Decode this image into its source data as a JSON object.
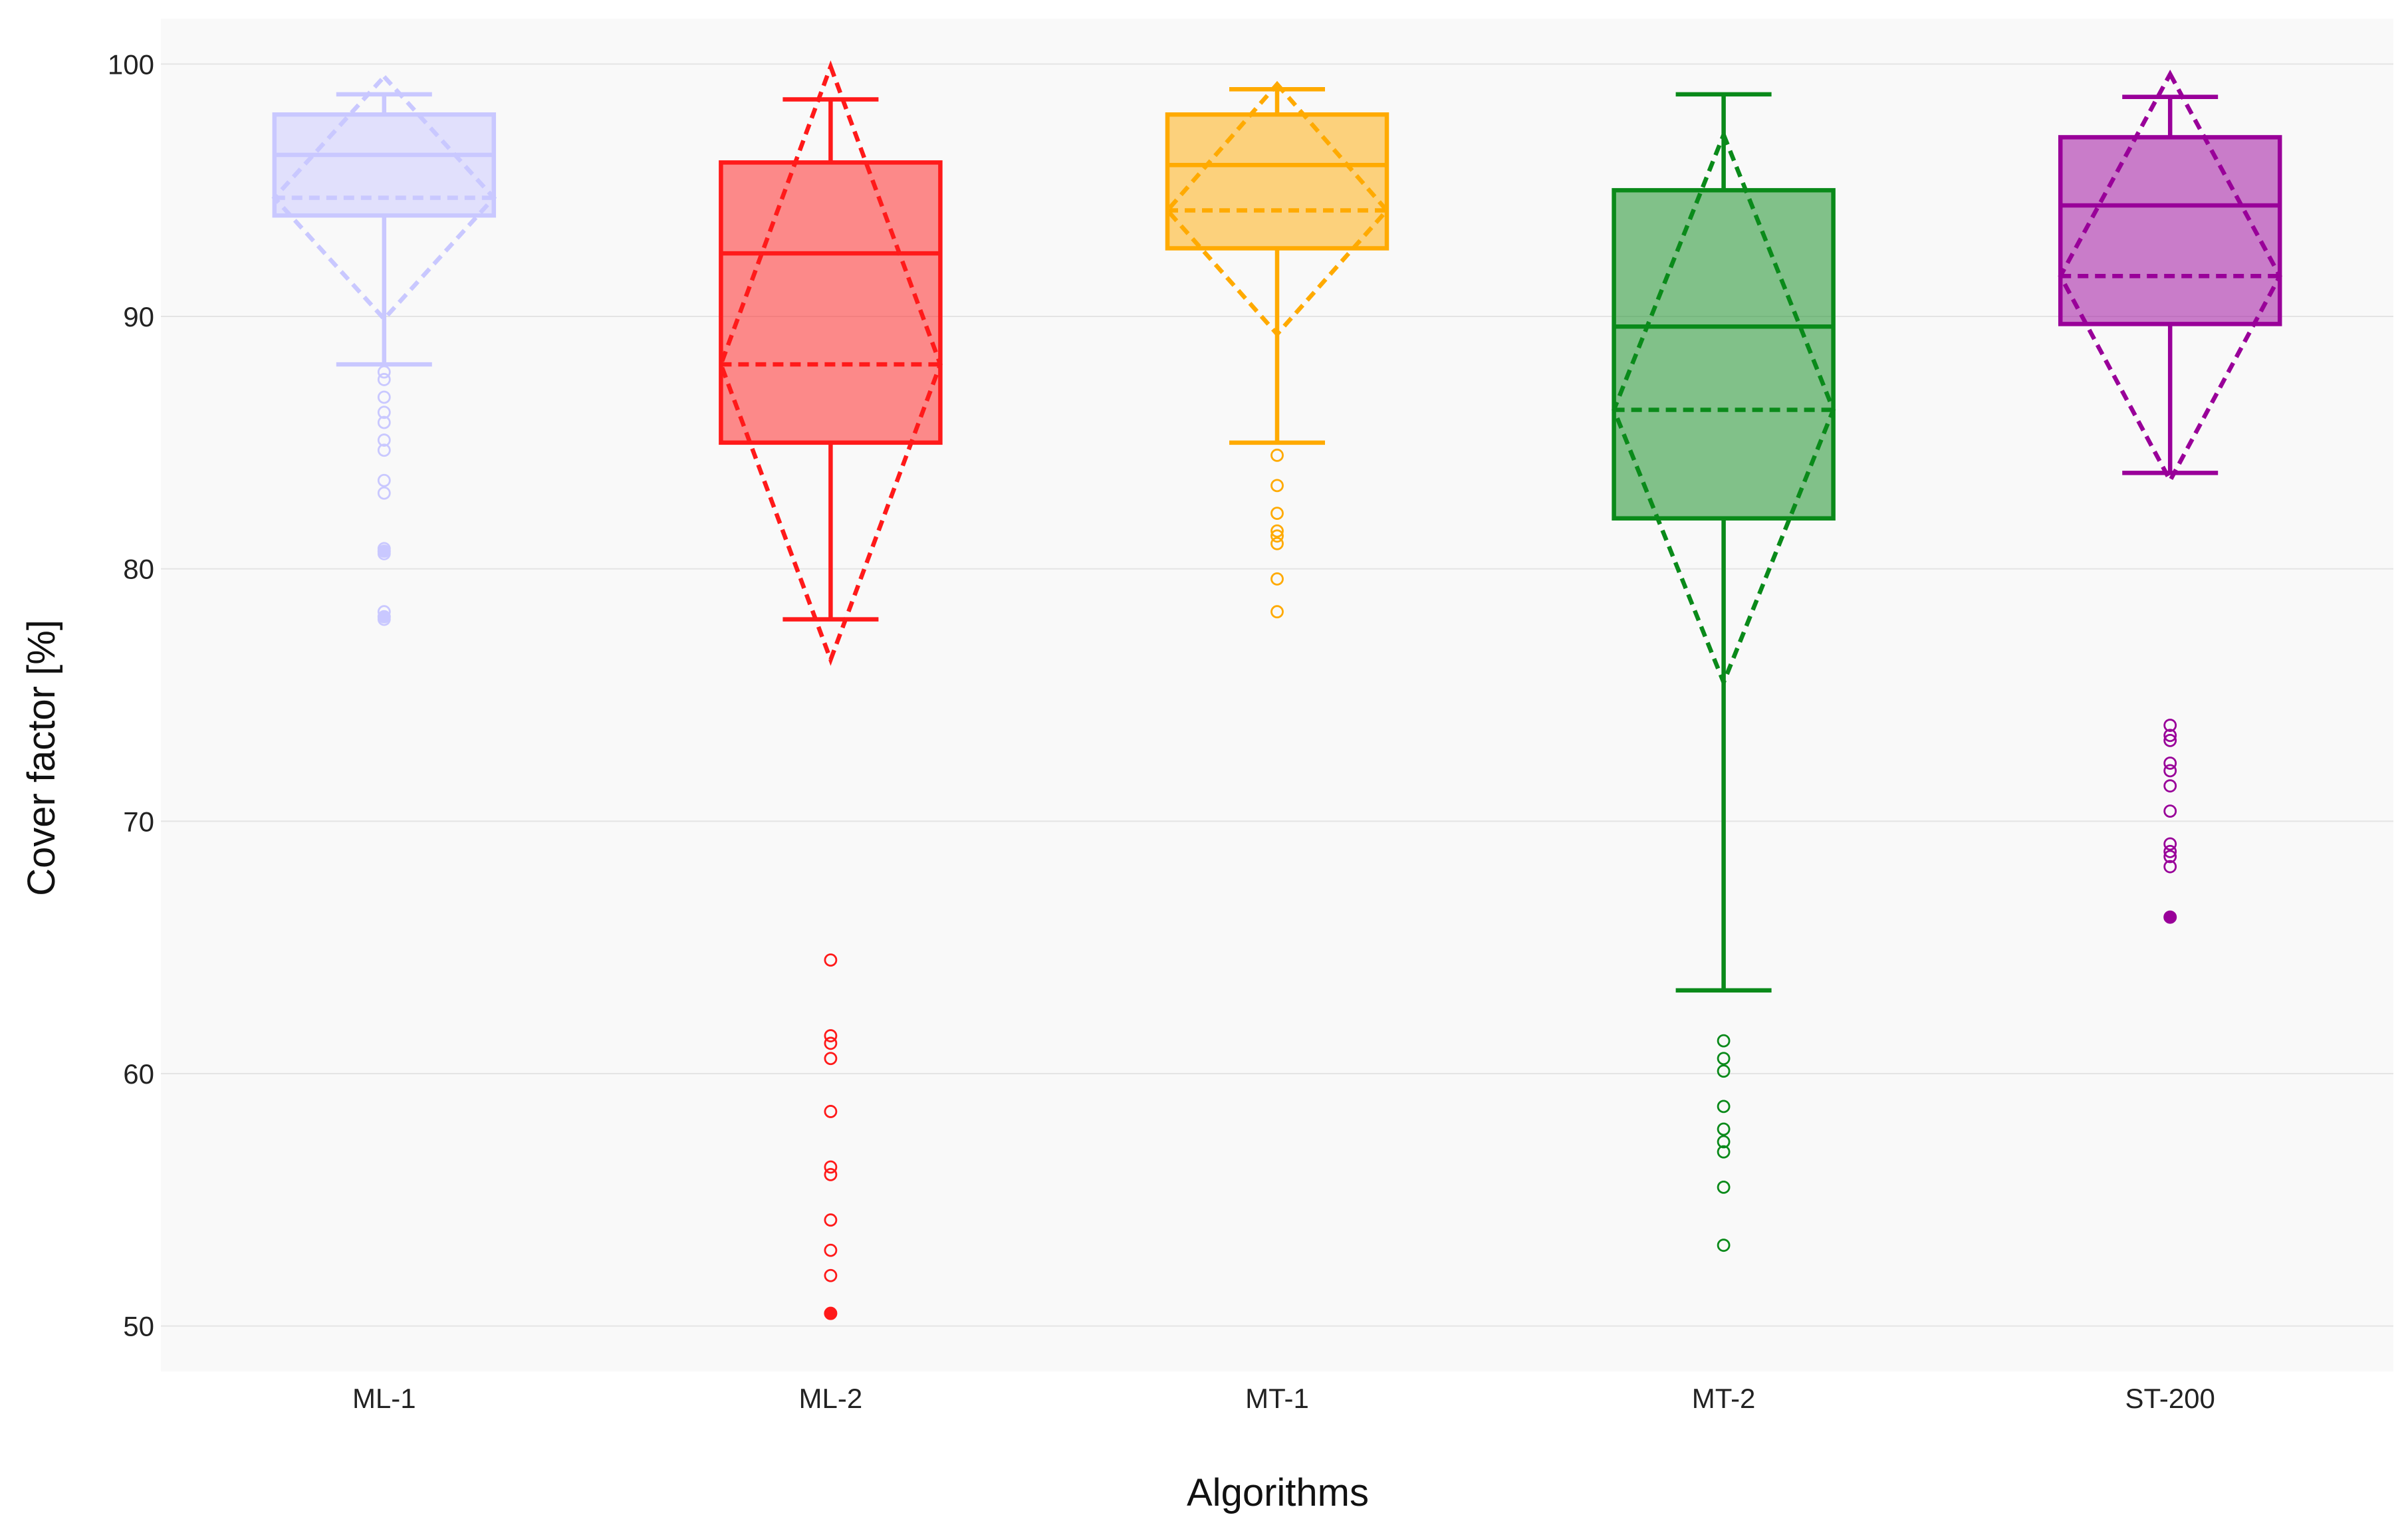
{
  "chart_data": {
    "type": "box",
    "title": "",
    "xlabel": "Algorithms",
    "ylabel": "Cover factor [%]",
    "ylim": [
      48.2,
      101.8
    ],
    "yticks": [
      50,
      60,
      70,
      80,
      90,
      100
    ],
    "grid": true,
    "categories": [
      "ML-1",
      "ML-2",
      "MT-1",
      "MT-2",
      "ST-200"
    ],
    "series": [
      {
        "name": "ML-1",
        "color": "#c9c8ff",
        "min": 88.1,
        "q1": 94.0,
        "median": 96.4,
        "q3": 98.0,
        "max": 98.8,
        "mean": 94.7,
        "mean_minus_sd": 89.9,
        "mean_plus_sd": 99.5,
        "outliers": [
          87.8,
          87.5,
          86.8,
          86.2,
          85.8,
          85.1,
          84.7,
          83.5,
          83.0,
          80.8,
          80.6,
          78.3,
          78.0
        ],
        "filled_outliers": [
          80.7,
          78.1
        ]
      },
      {
        "name": "ML-2",
        "color": "#ff1a1a",
        "min": 78.0,
        "q1": 85.0,
        "median": 92.5,
        "q3": 96.1,
        "max": 98.6,
        "mean": 88.1,
        "mean_minus_sd": 76.4,
        "mean_plus_sd": 99.9,
        "outliers": [
          64.5,
          61.5,
          61.2,
          60.6,
          58.5,
          56.3,
          56.0,
          54.2,
          53.0,
          52.0
        ],
        "filled_outliers": [
          50.5
        ]
      },
      {
        "name": "MT-1",
        "color": "#ffaa00",
        "min": 85.0,
        "q1": 92.7,
        "median": 96.0,
        "q3": 98.0,
        "max": 99.0,
        "mean": 94.2,
        "mean_minus_sd": 89.3,
        "mean_plus_sd": 99.2,
        "outliers": [
          84.5,
          83.3,
          82.2,
          81.5,
          81.3,
          81.0,
          79.6,
          78.3
        ],
        "filled_outliers": []
      },
      {
        "name": "MT-2",
        "color": "#0a8a1a",
        "min": 63.3,
        "q1": 82.0,
        "median": 89.6,
        "q3": 95.0,
        "max": 98.8,
        "mean": 86.3,
        "mean_minus_sd": 75.5,
        "mean_plus_sd": 97.2,
        "outliers": [
          61.3,
          60.6,
          60.1,
          58.7,
          57.8,
          57.3,
          56.9,
          55.5,
          53.2
        ],
        "filled_outliers": []
      },
      {
        "name": "ST-200",
        "color": "#990099",
        "min": 83.8,
        "q1": 89.7,
        "median": 94.4,
        "q3": 97.1,
        "max": 98.7,
        "mean": 91.6,
        "mean_minus_sd": 83.5,
        "mean_plus_sd": 99.6,
        "outliers": [
          73.8,
          73.4,
          73.2,
          72.3,
          72.0,
          71.4,
          70.4,
          69.1,
          68.8,
          68.6,
          68.2
        ],
        "filled_outliers": [
          66.2
        ]
      }
    ]
  }
}
